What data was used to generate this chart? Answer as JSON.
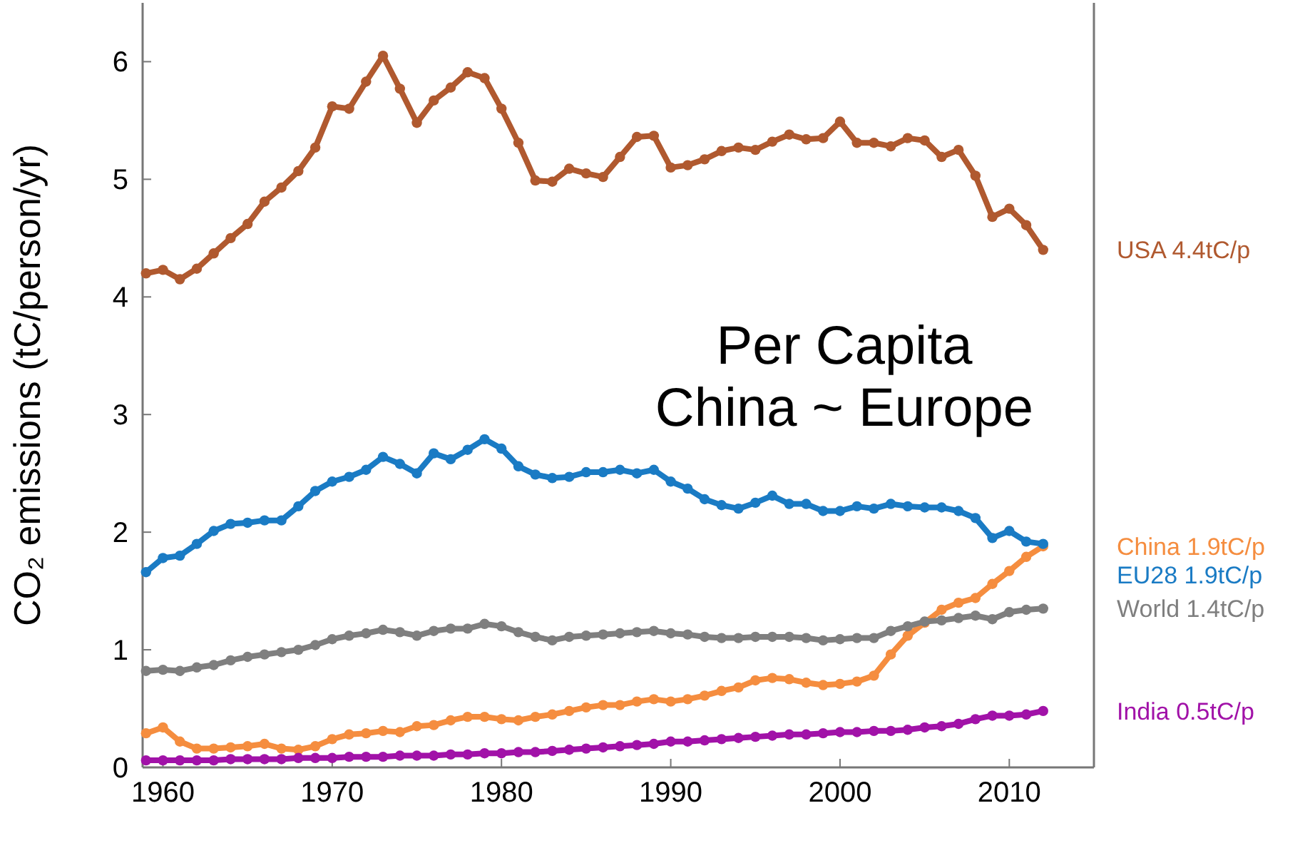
{
  "chart_data": {
    "type": "line",
    "ylabel": "CO₂ emissions (tC/person/yr)",
    "x": [
      1959,
      1960,
      1961,
      1962,
      1963,
      1964,
      1965,
      1966,
      1967,
      1968,
      1969,
      1970,
      1971,
      1972,
      1973,
      1974,
      1975,
      1976,
      1977,
      1978,
      1979,
      1980,
      1981,
      1982,
      1983,
      1984,
      1985,
      1986,
      1987,
      1988,
      1989,
      1990,
      1991,
      1992,
      1993,
      1994,
      1995,
      1996,
      1997,
      1998,
      1999,
      2000,
      2001,
      2002,
      2003,
      2004,
      2005,
      2006,
      2007,
      2008,
      2009,
      2010,
      2011,
      2012
    ],
    "series": [
      {
        "name": "USA 4.4tC/p",
        "color": "#b0592f",
        "values": [
          4.2,
          4.23,
          4.15,
          4.24,
          4.37,
          4.5,
          4.62,
          4.81,
          4.93,
          5.07,
          5.27,
          5.62,
          5.6,
          5.83,
          6.05,
          5.77,
          5.48,
          5.67,
          5.78,
          5.91,
          5.86,
          5.6,
          5.31,
          4.99,
          4.98,
          5.09,
          5.05,
          5.02,
          5.19,
          5.36,
          5.37,
          5.1,
          5.12,
          5.17,
          5.24,
          5.27,
          5.25,
          5.32,
          5.38,
          5.34,
          5.35,
          5.49,
          5.31,
          5.31,
          5.28,
          5.35,
          5.33,
          5.19,
          5.25,
          5.03,
          4.68,
          4.75,
          4.61,
          4.4
        ]
      },
      {
        "name": "China 1.9tC/p",
        "color": "#f58d3f",
        "values": [
          0.29,
          0.34,
          0.22,
          0.16,
          0.16,
          0.17,
          0.18,
          0.2,
          0.16,
          0.15,
          0.18,
          0.24,
          0.28,
          0.29,
          0.31,
          0.3,
          0.35,
          0.36,
          0.4,
          0.43,
          0.43,
          0.41,
          0.4,
          0.43,
          0.45,
          0.48,
          0.51,
          0.53,
          0.53,
          0.56,
          0.58,
          0.56,
          0.58,
          0.61,
          0.65,
          0.68,
          0.74,
          0.76,
          0.75,
          0.72,
          0.7,
          0.71,
          0.73,
          0.78,
          0.96,
          1.12,
          1.23,
          1.34,
          1.4,
          1.44,
          1.56,
          1.67,
          1.79,
          1.88
        ]
      },
      {
        "name": "EU28 1.9tC/p",
        "color": "#1a7bc4",
        "values": [
          1.66,
          1.78,
          1.8,
          1.9,
          2.01,
          2.07,
          2.08,
          2.1,
          2.1,
          2.22,
          2.35,
          2.43,
          2.47,
          2.53,
          2.64,
          2.58,
          2.5,
          2.67,
          2.62,
          2.7,
          2.79,
          2.71,
          2.56,
          2.49,
          2.46,
          2.47,
          2.51,
          2.51,
          2.53,
          2.5,
          2.53,
          2.43,
          2.37,
          2.28,
          2.23,
          2.2,
          2.25,
          2.31,
          2.24,
          2.24,
          2.18,
          2.18,
          2.22,
          2.2,
          2.24,
          2.22,
          2.21,
          2.21,
          2.18,
          2.12,
          1.95,
          2.01,
          1.92,
          1.9
        ]
      },
      {
        "name": "World 1.4tC/p",
        "color": "#7f7f7f",
        "values": [
          0.82,
          0.83,
          0.82,
          0.85,
          0.87,
          0.91,
          0.94,
          0.96,
          0.98,
          1.0,
          1.04,
          1.09,
          1.12,
          1.14,
          1.17,
          1.15,
          1.12,
          1.16,
          1.18,
          1.18,
          1.22,
          1.2,
          1.15,
          1.11,
          1.08,
          1.11,
          1.12,
          1.13,
          1.14,
          1.15,
          1.16,
          1.14,
          1.13,
          1.11,
          1.1,
          1.1,
          1.11,
          1.11,
          1.11,
          1.1,
          1.08,
          1.09,
          1.1,
          1.1,
          1.16,
          1.2,
          1.24,
          1.25,
          1.27,
          1.29,
          1.26,
          1.32,
          1.34,
          1.35
        ]
      },
      {
        "name": "India 0.5tC/p",
        "color": "#a112a8",
        "values": [
          0.06,
          0.06,
          0.06,
          0.06,
          0.06,
          0.07,
          0.07,
          0.07,
          0.07,
          0.08,
          0.08,
          0.08,
          0.09,
          0.09,
          0.09,
          0.1,
          0.1,
          0.1,
          0.11,
          0.11,
          0.12,
          0.12,
          0.13,
          0.13,
          0.14,
          0.15,
          0.16,
          0.17,
          0.18,
          0.19,
          0.2,
          0.22,
          0.22,
          0.23,
          0.24,
          0.25,
          0.26,
          0.27,
          0.28,
          0.28,
          0.29,
          0.3,
          0.3,
          0.31,
          0.31,
          0.32,
          0.34,
          0.35,
          0.37,
          0.41,
          0.44,
          0.44,
          0.45,
          0.48
        ]
      }
    ],
    "xlim": [
      1958.8,
      2015
    ],
    "xticks": [
      1960,
      1970,
      1980,
      1990,
      2000,
      2010
    ],
    "ylim": [
      0,
      6.5
    ],
    "yticks": [
      0,
      1,
      2,
      3,
      4,
      5,
      6
    ],
    "marker": "circle",
    "line_style": "solid",
    "legend": "right",
    "grid": false,
    "annotations": [
      "Per Capita\nChina ~ Europe"
    ]
  }
}
